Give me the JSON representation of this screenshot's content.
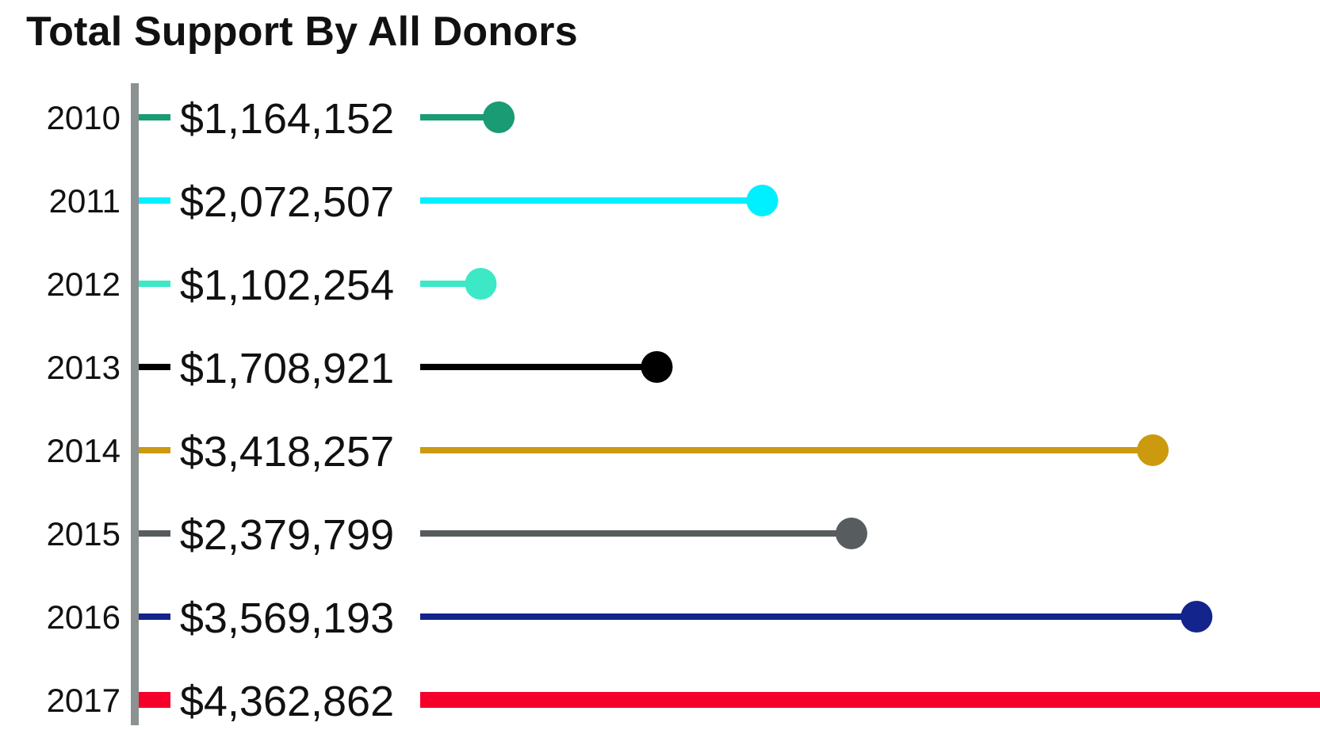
{
  "title": "Total Support By All Donors",
  "chart_data": {
    "type": "lollipop",
    "title": "Total Support By All Donors",
    "categories": [
      "2010",
      "2011",
      "2012",
      "2013",
      "2014",
      "2015",
      "2016",
      "2017"
    ],
    "values": [
      1164152,
      2072507,
      1102254,
      1708921,
      3418257,
      2379799,
      3569193,
      4362862
    ],
    "value_labels": [
      "$1,164,152",
      "$2,072,507",
      "$1,102,254",
      "$1,708,921",
      "$3,418,257",
      "$2,379,799",
      "$3,569,193",
      "$4,362,862"
    ],
    "colors": [
      "#1a9b74",
      "#00f0ff",
      "#3de8c6",
      "#000000",
      "#cc9a0e",
      "#575c5f",
      "#13248c",
      "#f4002b"
    ],
    "axis_color": "#8c9191",
    "xlim": [
      0,
      4362862
    ],
    "grid": false,
    "legend": "none",
    "xlabel": "",
    "ylabel": ""
  }
}
